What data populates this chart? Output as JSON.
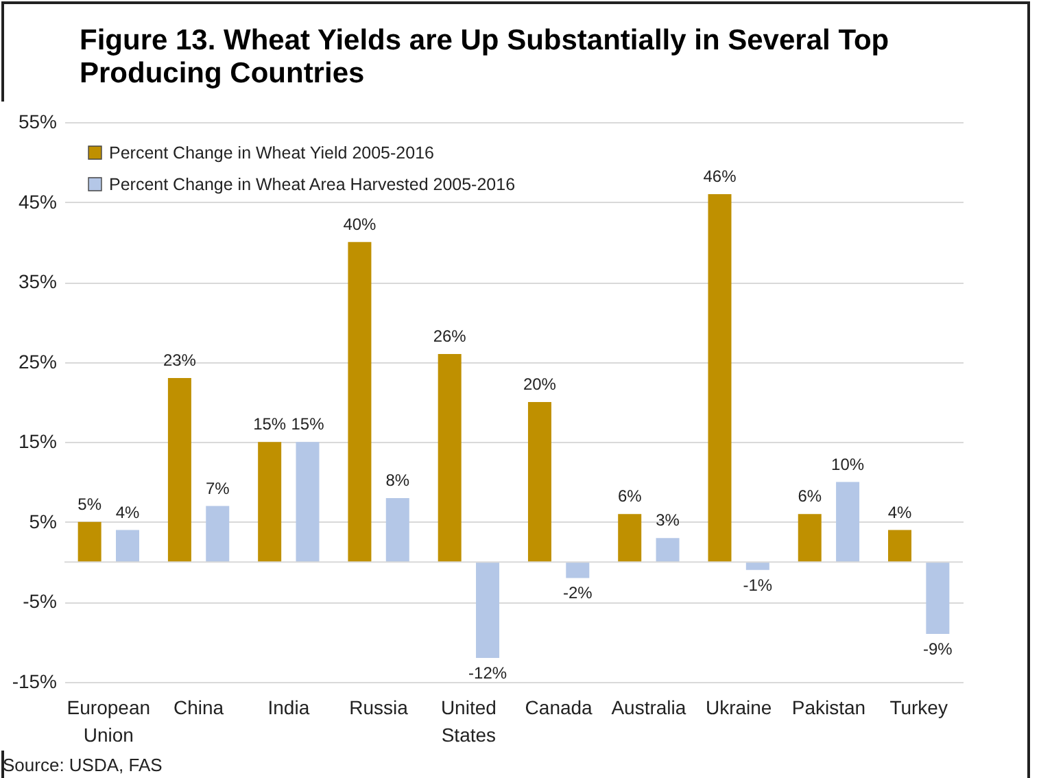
{
  "chart_data": {
    "type": "bar",
    "title": "Figure 13. Wheat Yields are Up Substantially in Several Top Producing Countries",
    "categories": [
      "European Union",
      "China",
      "India",
      "Russia",
      "United States",
      "Canada",
      "Australia",
      "Ukraine",
      "Pakistan",
      "Turkey"
    ],
    "series": [
      {
        "name": "Percent Change in Wheat Yield 2005-2016",
        "color": "#bf9000",
        "values": [
          5,
          23,
          15,
          40,
          26,
          20,
          6,
          46,
          6,
          4
        ],
        "value_labels": [
          "5%",
          "23%",
          "15%",
          "40%",
          "26%",
          "20%",
          "6%",
          "46%",
          "6%",
          "4%"
        ]
      },
      {
        "name": "Percent Change in  Wheat Area Harvested 2005-2016",
        "color": "#b4c7e7",
        "values": [
          4,
          7,
          15,
          8,
          -12,
          -2,
          3,
          -1,
          10,
          -9
        ],
        "value_labels": [
          "4%",
          "7%",
          "15%",
          "8%",
          "-12%",
          "-2%",
          "3%",
          "-1%",
          "10%",
          "-9%"
        ]
      }
    ],
    "ylim": [
      -15,
      55
    ],
    "yticks": [
      {
        "value": -15,
        "label": "-15%"
      },
      {
        "value": -5,
        "label": "-5%"
      },
      {
        "value": 5,
        "label": "5%"
      },
      {
        "value": 15,
        "label": "15%"
      },
      {
        "value": 25,
        "label": "25%"
      },
      {
        "value": 35,
        "label": "35%"
      },
      {
        "value": 45,
        "label": "45%"
      },
      {
        "value": 55,
        "label": "55%"
      }
    ],
    "grid": "y",
    "legend": "top left",
    "ref_lines": [
      {
        "axis": "y",
        "value": 0,
        "color": "#d9d9d9"
      }
    ],
    "annotations": [
      "Source:  USDA, FAS"
    ]
  }
}
